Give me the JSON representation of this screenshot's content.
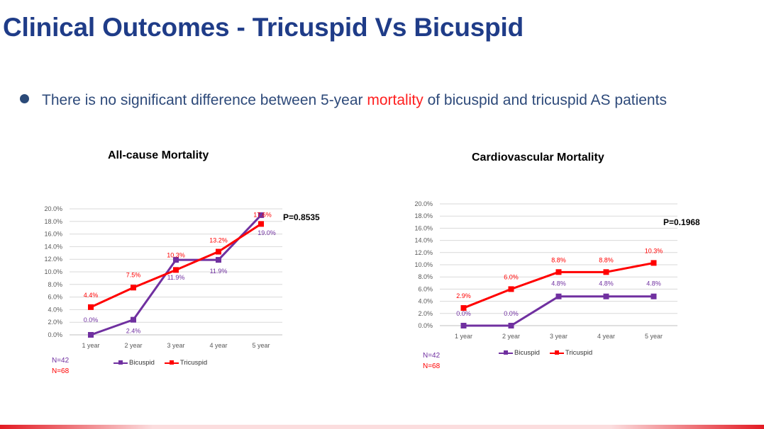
{
  "slide": {
    "title": "Clinical Outcomes - Tricuspid Vs Bicuspid",
    "bullet": {
      "pre": "There is no significant difference between 5-year ",
      "highlight": "mortality",
      "post": "  of bicuspid and tricuspid AS patients"
    }
  },
  "colors": {
    "title": "#1f3c88",
    "bicuspid": "#7030a0",
    "tricuspid": "#ff0000",
    "highlight": "#ff1f1f"
  },
  "chart_data": [
    {
      "type": "line",
      "title": "All-cause Mortality",
      "categories": [
        "1 year",
        "2 year",
        "3 year",
        "4 year",
        "5 year"
      ],
      "yticks": [
        "20.0%",
        "18.0%",
        "16.0%",
        "14.0%",
        "12.0%",
        "10.0%",
        "8.0%",
        "6.0%",
        "4.0%",
        "2.0%",
        "0.0%"
      ],
      "ylim": [
        0,
        20
      ],
      "series": [
        {
          "name": "Bicuspid",
          "values": [
            0.0,
            2.4,
            11.9,
            11.9,
            19.0
          ],
          "labels": [
            "0.0%",
            "2.4%",
            "11.9%",
            "11.9%",
            "19.0%"
          ]
        },
        {
          "name": "Tricuspid",
          "values": [
            4.4,
            7.5,
            10.3,
            13.2,
            17.6
          ],
          "labels": [
            "4.4%",
            "7.5%",
            "10.3%",
            "13.2%",
            "17.6%"
          ]
        }
      ],
      "p_value": "P=0.8535",
      "n_bicuspid": "N=42",
      "n_tricuspid": "N=68"
    },
    {
      "type": "line",
      "title": "Cardiovascular Mortality",
      "categories": [
        "1 year",
        "2 year",
        "3 year",
        "4 year",
        "5 year"
      ],
      "yticks": [
        "20.0%",
        "18.0%",
        "16.0%",
        "14.0%",
        "12.0%",
        "10.0%",
        "8.0%",
        "6.0%",
        "4.0%",
        "2.0%",
        "0.0%"
      ],
      "ylim": [
        0,
        20
      ],
      "series": [
        {
          "name": "Bicuspid",
          "values": [
            0.0,
            0.0,
            4.8,
            4.8,
            4.8
          ],
          "labels": [
            "0.0%",
            "0.0%",
            "4.8%",
            "4.8%",
            "4.8%"
          ]
        },
        {
          "name": "Tricuspid",
          "values": [
            2.9,
            6.0,
            8.8,
            8.8,
            10.3
          ],
          "labels": [
            "2.9%",
            "6.0%",
            "8.8%",
            "8.8%",
            "10.3%"
          ]
        }
      ],
      "p_value": "P=0.1968",
      "n_bicuspid": "N=42",
      "n_tricuspid": "N=68"
    }
  ]
}
